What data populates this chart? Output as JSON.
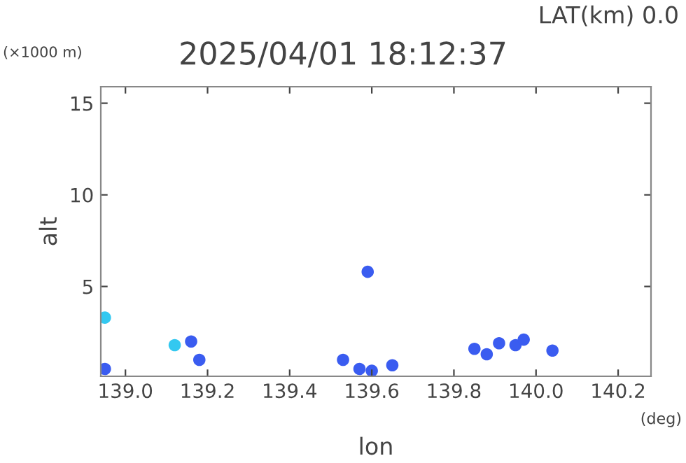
{
  "chart_data": {
    "type": "scatter",
    "title": "2025/04/01 18:12:37",
    "xlabel": "lon",
    "ylabel": "alt",
    "annotations": [
      "LAT(km) 0.0",
      "(×1000 m)",
      "(deg)"
    ],
    "x": [
      138.95,
      138.95,
      139.12,
      139.16,
      139.18,
      139.53,
      139.57,
      139.6,
      139.65,
      139.59,
      139.85,
      139.88,
      139.91,
      139.95,
      139.97,
      140.04
    ],
    "series": [
      {
        "color": "#3a5cf0",
        "values": [
          0.5,
          null,
          null,
          2.0,
          1.0,
          1.0,
          0.5,
          0.4,
          0.7,
          5.8,
          1.6,
          1.3,
          1.9,
          1.8,
          2.1,
          1.5
        ]
      },
      {
        "color": "#33c8f0",
        "values": [
          null,
          3.3,
          1.8,
          null,
          null,
          null,
          null,
          null,
          null,
          null,
          null,
          null,
          null,
          null,
          null,
          null
        ]
      }
    ],
    "xlim": [
      138.94,
      140.28
    ],
    "ylim": [
      0.1,
      15.9
    ],
    "xticks": [
      {
        "value": 139,
        "label": "139.0"
      },
      139.2,
      139.4,
      139.6,
      139.8,
      {
        "value": 140,
        "label": "140.0"
      },
      140.2
    ],
    "yticks": [
      5,
      10,
      15
    ],
    "marker": "circle",
    "grid": false,
    "legend": false
  }
}
